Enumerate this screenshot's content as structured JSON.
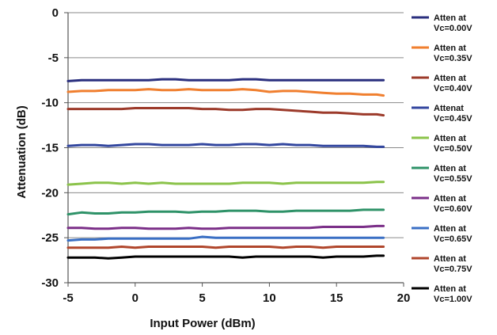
{
  "chart_data": {
    "type": "line",
    "title": "",
    "xlabel": "Input Power (dBm)",
    "ylabel": "Attenuation (dB)",
    "xlim": [
      -5,
      20
    ],
    "ylim": [
      -30,
      0
    ],
    "xticks": [
      -5,
      0,
      5,
      10,
      15,
      20
    ],
    "yticks": [
      0,
      -5,
      -10,
      -15,
      -20,
      -25,
      -30
    ],
    "grid": "horizontal",
    "legend_position": "right",
    "x": [
      -5,
      -4,
      -3,
      -2,
      -1,
      0,
      1,
      2,
      3,
      4,
      5,
      6,
      7,
      8,
      9,
      10,
      11,
      12,
      13,
      14,
      15,
      16,
      17,
      18,
      18.5
    ],
    "series": [
      {
        "name": "Atten at Vc=0.00V",
        "color": "#2a2f7e",
        "values": [
          -7.6,
          -7.5,
          -7.5,
          -7.5,
          -7.5,
          -7.5,
          -7.5,
          -7.4,
          -7.4,
          -7.5,
          -7.5,
          -7.5,
          -7.5,
          -7.4,
          -7.4,
          -7.5,
          -7.5,
          -7.5,
          -7.5,
          -7.5,
          -7.5,
          -7.5,
          -7.5,
          -7.5,
          -7.5
        ]
      },
      {
        "name": "Atten at Vc=0.35V",
        "color": "#f07f2f",
        "values": [
          -8.8,
          -8.7,
          -8.7,
          -8.6,
          -8.6,
          -8.6,
          -8.5,
          -8.6,
          -8.6,
          -8.5,
          -8.6,
          -8.6,
          -8.6,
          -8.5,
          -8.6,
          -8.8,
          -8.7,
          -8.7,
          -8.8,
          -8.9,
          -9.0,
          -9.0,
          -9.1,
          -9.1,
          -9.2
        ]
      },
      {
        "name": "Atten at Vc=0.40V",
        "color": "#9c3a2a",
        "values": [
          -10.7,
          -10.7,
          -10.7,
          -10.7,
          -10.7,
          -10.6,
          -10.6,
          -10.6,
          -10.6,
          -10.6,
          -10.7,
          -10.7,
          -10.8,
          -10.8,
          -10.7,
          -10.7,
          -10.8,
          -10.9,
          -11.0,
          -11.1,
          -11.1,
          -11.2,
          -11.3,
          -11.3,
          -11.4
        ]
      },
      {
        "name": "Attenat Vc=0.45V",
        "color": "#33479f",
        "values": [
          -14.8,
          -14.7,
          -14.7,
          -14.8,
          -14.7,
          -14.6,
          -14.6,
          -14.7,
          -14.7,
          -14.7,
          -14.6,
          -14.7,
          -14.7,
          -14.6,
          -14.6,
          -14.7,
          -14.6,
          -14.7,
          -14.7,
          -14.8,
          -14.8,
          -14.8,
          -14.8,
          -14.9,
          -14.9
        ]
      },
      {
        "name": "Atten at Vc=0.50V",
        "color": "#8bc34a",
        "values": [
          -19.1,
          -19.0,
          -18.9,
          -18.9,
          -19.0,
          -18.9,
          -19.0,
          -18.9,
          -19.0,
          -19.0,
          -19.0,
          -19.0,
          -19.0,
          -18.9,
          -18.9,
          -18.9,
          -19.0,
          -18.9,
          -18.9,
          -18.9,
          -18.9,
          -18.9,
          -18.9,
          -18.8,
          -18.8
        ]
      },
      {
        "name": "Atten at Vc=0.55V",
        "color": "#2e9268",
        "values": [
          -22.4,
          -22.2,
          -22.3,
          -22.3,
          -22.2,
          -22.2,
          -22.1,
          -22.1,
          -22.1,
          -22.2,
          -22.1,
          -22.1,
          -22.0,
          -22.0,
          -22.0,
          -22.1,
          -22.1,
          -22.0,
          -22.0,
          -22.0,
          -22.0,
          -22.0,
          -21.9,
          -21.9,
          -21.9
        ]
      },
      {
        "name": "Atten at Vc=0.60V",
        "color": "#7b2f88",
        "values": [
          -23.9,
          -23.9,
          -24.0,
          -24.0,
          -23.9,
          -23.9,
          -24.0,
          -24.0,
          -24.0,
          -23.9,
          -24.0,
          -24.0,
          -23.9,
          -23.9,
          -23.9,
          -23.9,
          -23.9,
          -23.9,
          -23.9,
          -23.8,
          -23.8,
          -23.8,
          -23.8,
          -23.7,
          -23.7
        ]
      },
      {
        "name": "Atten at Vc=0.65V",
        "color": "#3a6fc4",
        "values": [
          -25.3,
          -25.2,
          -25.2,
          -25.1,
          -25.1,
          -25.1,
          -25.1,
          -25.1,
          -25.1,
          -25.1,
          -24.9,
          -25.0,
          -25.0,
          -25.0,
          -25.0,
          -25.0,
          -25.0,
          -25.0,
          -25.0,
          -25.0,
          -25.0,
          -25.0,
          -25.0,
          -25.0,
          -25.0
        ]
      },
      {
        "name": "Atten at Vc=0.75V",
        "color": "#b0462c",
        "values": [
          -26.1,
          -26.1,
          -26.1,
          -26.1,
          -26.0,
          -26.1,
          -26.0,
          -26.0,
          -26.0,
          -26.0,
          -26.0,
          -26.1,
          -26.0,
          -26.0,
          -26.0,
          -26.0,
          -26.1,
          -26.0,
          -26.0,
          -26.1,
          -26.0,
          -26.0,
          -26.0,
          -26.0,
          -26.0
        ]
      },
      {
        "name": "Atten at Vc=1.00V",
        "color": "#000000",
        "values": [
          -27.2,
          -27.2,
          -27.2,
          -27.3,
          -27.2,
          -27.1,
          -27.1,
          -27.1,
          -27.1,
          -27.1,
          -27.1,
          -27.1,
          -27.1,
          -27.2,
          -27.1,
          -27.1,
          -27.1,
          -27.1,
          -27.1,
          -27.2,
          -27.1,
          -27.1,
          -27.1,
          -27.0,
          -27.0
        ]
      }
    ]
  }
}
